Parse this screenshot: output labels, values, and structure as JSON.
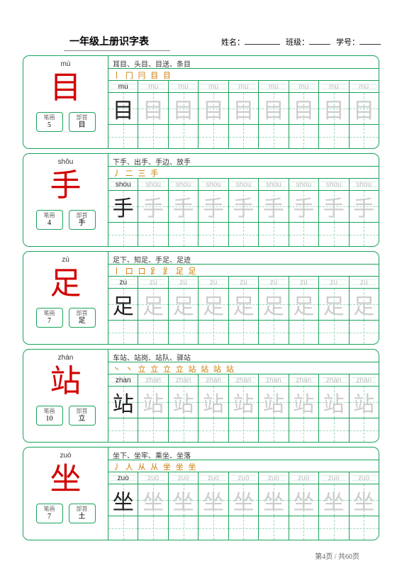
{
  "colors": {
    "border": "#1aa35a",
    "char": "#d20000",
    "dash": "#9fd9b8",
    "stroke_text": "#cc7a00",
    "faded": "#cccccc"
  },
  "header": {
    "title": "一年级上册识字表",
    "name_label": "姓名：",
    "class_label": "班级：",
    "id_label": "学号："
  },
  "labels": {
    "strokes": "笔画",
    "radical": "部首"
  },
  "practice_cols": 9,
  "rows": [
    {
      "pinyin": "mù",
      "char": "目",
      "stroke_count": "5",
      "radical": "目",
      "words": "耳目、头目、目送、条目",
      "stroke_order": "丨 冂 冃 目 目"
    },
    {
      "pinyin": "shǒu",
      "char": "手",
      "stroke_count": "4",
      "radical": "手",
      "words": "下手、出手、手边、放手",
      "stroke_order": "丿 二 三 手"
    },
    {
      "pinyin": "zú",
      "char": "足",
      "stroke_count": "7",
      "radical": "足",
      "words": "足下、知足、手足、足迹",
      "stroke_order": "丨 口 口 ⻊ ⻊ 足 足"
    },
    {
      "pinyin": "zhàn",
      "char": "站",
      "stroke_count": "10",
      "radical": "立",
      "words": "车站、站岗、站队、驿站",
      "stroke_order": "丶 丶 立 立 立 立 站 站 站 站"
    },
    {
      "pinyin": "zuò",
      "char": "坐",
      "stroke_count": "7",
      "radical": "土",
      "words": "坐下、坐牢、乘坐、坐落",
      "stroke_order": "丿 人 从 从 坐 坐 坐"
    }
  ],
  "footer": "第4页 / 共60页"
}
